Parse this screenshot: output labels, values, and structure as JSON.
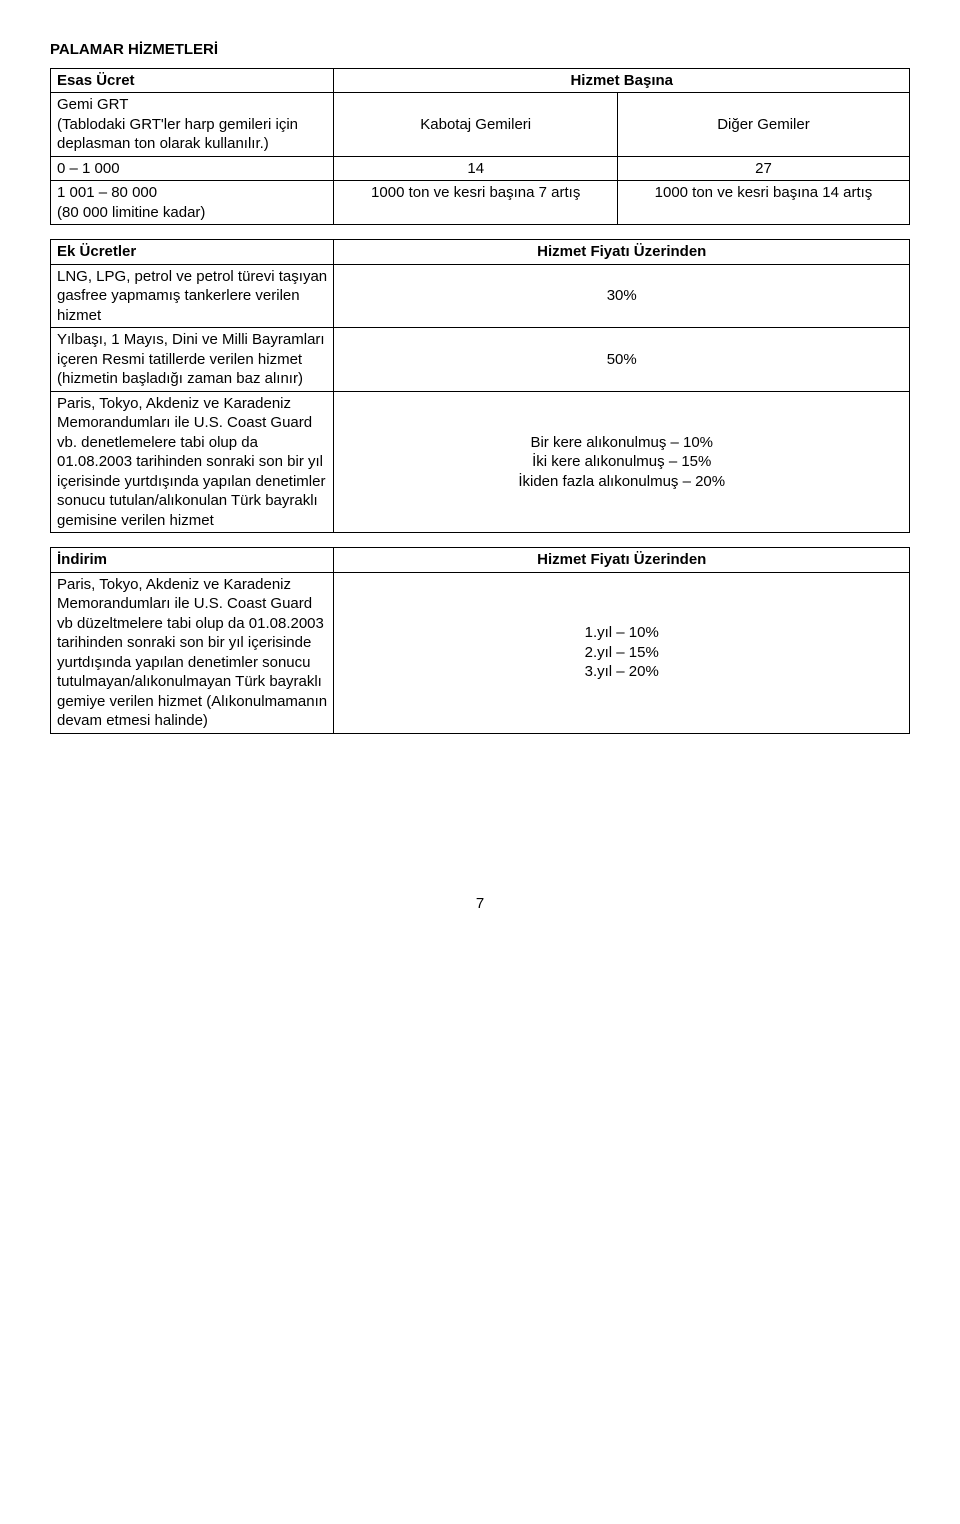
{
  "title": "PALAMAR HİZMETLERİ",
  "esas": {
    "header": "Esas Ücret",
    "right_header": "Hizmet Başına",
    "row1_left": "Gemi GRT\n(Tablodaki GRT'ler harp gemileri için deplasman ton olarak kullanılır.)",
    "row1_mid": "Kabotaj Gemileri",
    "row1_right": "Diğer Gemiler",
    "row2_left": "0 – 1 000",
    "row2_mid": "14",
    "row2_right": "27",
    "row3_left": "1 001 – 80 000\n(80 000 limitine kadar)",
    "row3_mid": "1000 ton ve kesri başına 7 artış",
    "row3_right": "1000 ton ve kesri başına 14 artış"
  },
  "ek": {
    "header_left": "Ek Ücretler",
    "header_right": "Hizmet Fiyatı Üzerinden",
    "r1_left": "LNG, LPG, petrol ve petrol türevi taşıyan gasfree yapmamış tankerlere verilen hizmet",
    "r1_right": "30%",
    "r2_left": "Yılbaşı, 1 Mayıs, Dini ve Milli Bayramları içeren Resmi tatillerde verilen hizmet (hizmetin başladığı zaman baz alınır)",
    "r2_right": "50%",
    "r3_left": "Paris, Tokyo, Akdeniz ve Karadeniz Memorandumları ile U.S. Coast Guard vb. denetlemelere tabi olup da 01.08.2003 tarihinden sonraki son bir yıl içerisinde yurtdışında yapılan denetimler sonucu tutulan/alıkonulan Türk bayraklı gemisine verilen hizmet",
    "r3_line1": "Bir kere alıkonulmuş – 10%",
    "r3_line2": "İki kere alıkonulmuş – 15%",
    "r3_line3": "İkiden fazla alıkonulmuş – 20%"
  },
  "indirim": {
    "header_left": "İndirim",
    "header_right": "Hizmet Fiyatı Üzerinden",
    "r1_left": "Paris, Tokyo, Akdeniz ve Karadeniz Memorandumları ile U.S. Coast Guard vb düzeltmelere tabi olup da 01.08.2003 tarihinden sonraki son bir yıl içerisinde yurtdışında yapılan denetimler sonucu tutulmayan/alıkonulmayan Türk bayraklı gemiye verilen hizmet (Alıkonulmamanın devam etmesi halinde)",
    "r1_line1": "1.yıl – 10%",
    "r1_line2": "2.yıl – 15%",
    "r1_line3": "3.yıl – 20%"
  },
  "page_number": "7"
}
